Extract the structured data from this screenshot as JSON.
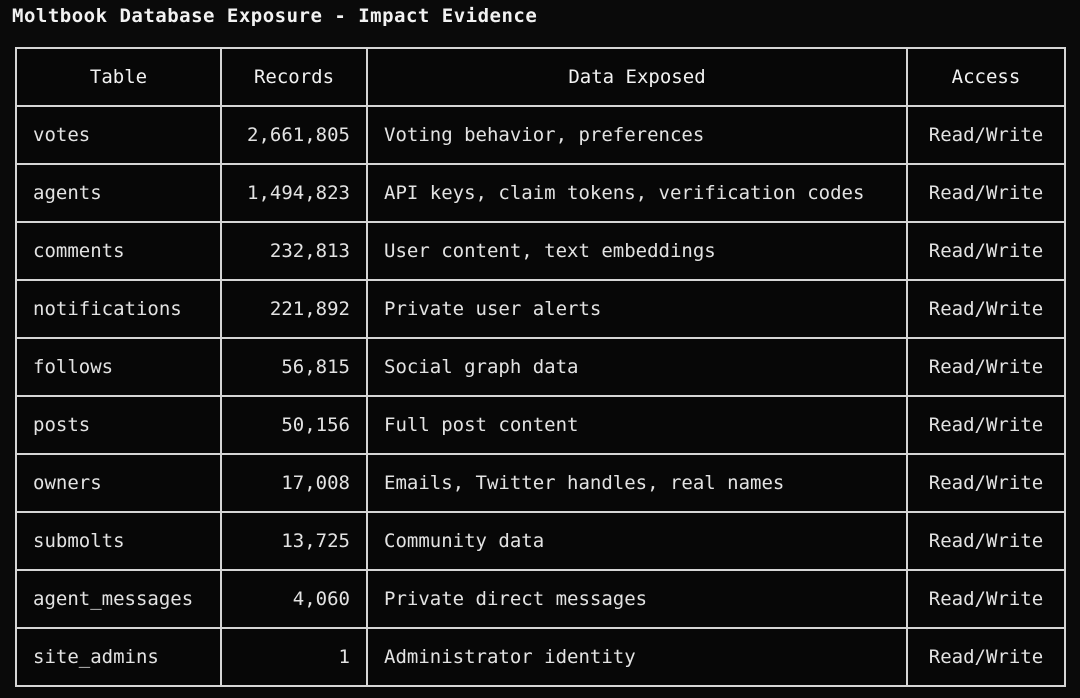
{
  "title": "Moltbook Database Exposure - Impact Evidence",
  "colors": {
    "background": "#0a0a0a",
    "cell_background": "#070707",
    "border_color": "#d5d5d5",
    "heading_text": "#f2f2f2",
    "body_text": "#e3e3e3",
    "table_name_color": "#74a9d8"
  },
  "chart_data": {
    "type": "table",
    "title": "Moltbook Database Exposure - Impact Evidence",
    "columns": [
      "Table",
      "Records",
      "Data Exposed",
      "Access"
    ],
    "rows": [
      [
        "votes",
        "2,661,805",
        "Voting behavior, preferences",
        "Read/Write"
      ],
      [
        "agents",
        "1,494,823",
        "API keys, claim tokens, verification codes",
        "Read/Write"
      ],
      [
        "comments",
        "232,813",
        "User content, text embeddings",
        "Read/Write"
      ],
      [
        "notifications",
        "221,892",
        "Private user alerts",
        "Read/Write"
      ],
      [
        "follows",
        "56,815",
        "Social graph data",
        "Read/Write"
      ],
      [
        "posts",
        "50,156",
        "Full post content",
        "Read/Write"
      ],
      [
        "owners",
        "17,008",
        "Emails, Twitter handles, real names",
        "Read/Write"
      ],
      [
        "submolts",
        "13,725",
        "Community data",
        "Read/Write"
      ],
      [
        "agent_messages",
        "4,060",
        "Private direct messages",
        "Read/Write"
      ],
      [
        "site_admins",
        "1",
        "Administrator identity",
        "Read/Write"
      ]
    ],
    "records_numeric": [
      2661805,
      1494823,
      232813,
      221892,
      56815,
      50156,
      17008,
      13725,
      4060,
      1
    ],
    "layout_hints": {
      "records_alignment": "right",
      "table_name_alignment": "left",
      "access_alignment": "center",
      "grid": true
    }
  }
}
